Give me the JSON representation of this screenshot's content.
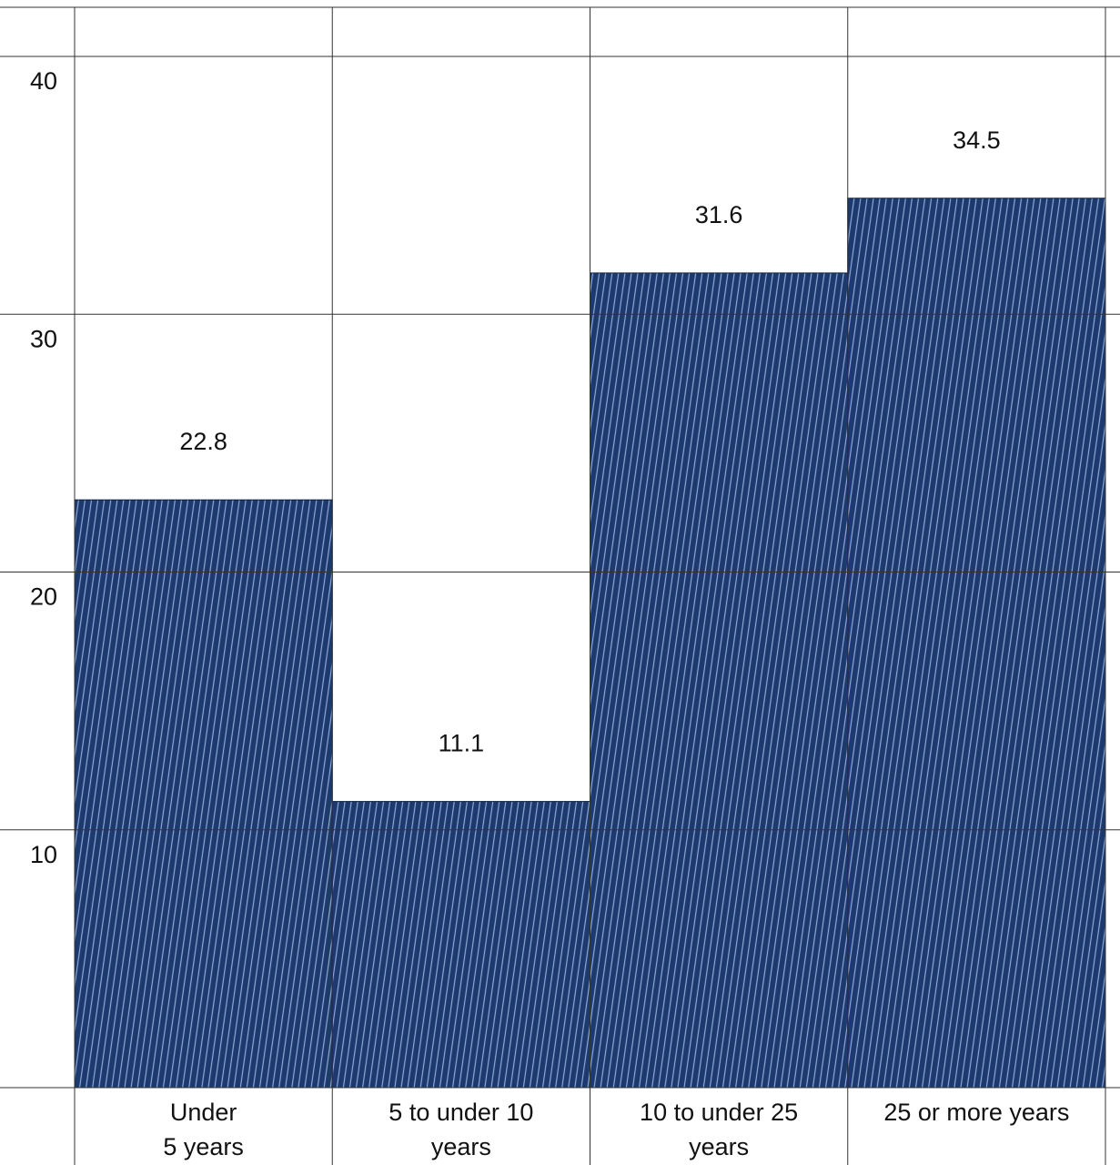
{
  "chart_data": {
    "type": "bar",
    "categories": [
      "Under\n5 years",
      "5 to under 10\nyears",
      "10 to under 25\nyears",
      "25 or more years"
    ],
    "values": [
      22.8,
      11.1,
      31.6,
      34.5
    ],
    "color": "#1c3a6e",
    "ylim": [
      0,
      40
    ],
    "yticks": [
      10,
      20,
      30,
      40
    ],
    "grid": true
  }
}
